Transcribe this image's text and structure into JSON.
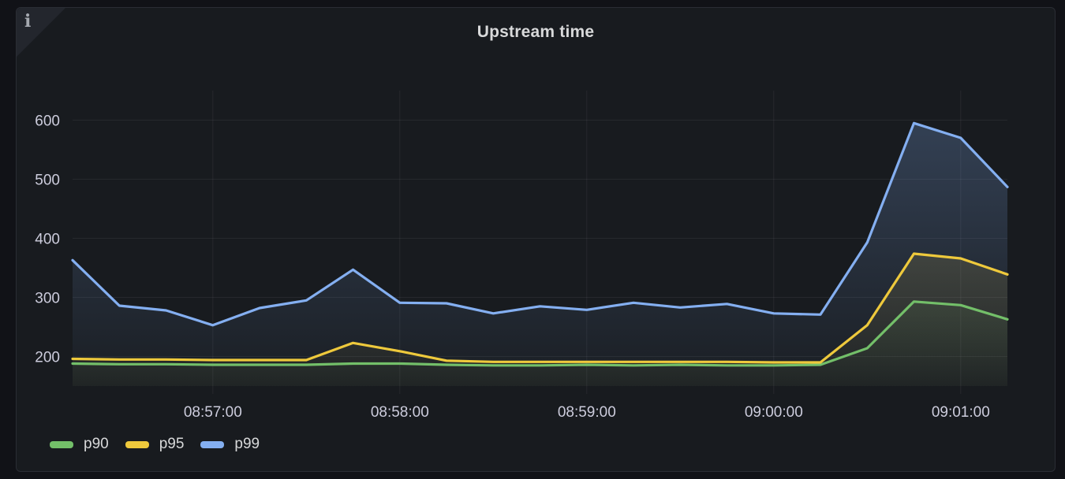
{
  "panel": {
    "title": "Upstream time",
    "info_corner_glyph": "i"
  },
  "colors": {
    "page_bg": "#111217",
    "panel_bg": "#181B1F",
    "panel_border": "#2A2D34",
    "corner_fold": "#23262D",
    "text": "#CCCCDC",
    "title_text": "#D8D9DA",
    "grid": "rgba(204,204,220,0.08)",
    "p90": "#73BF69",
    "p95": "#EEC93C",
    "p99": "#84AFF1"
  },
  "chart_data": {
    "type": "area",
    "title": "Upstream time",
    "x": [
      "08:56:15",
      "08:56:30",
      "08:56:45",
      "08:57:00",
      "08:57:15",
      "08:57:30",
      "08:57:45",
      "08:58:00",
      "08:58:15",
      "08:58:30",
      "08:58:45",
      "08:59:00",
      "08:59:15",
      "08:59:30",
      "08:59:45",
      "09:00:00",
      "09:00:15",
      "09:00:30",
      "09:00:45",
      "09:01:00",
      "09:01:15"
    ],
    "x_tick_labels": [
      "08:57:00",
      "08:58:00",
      "08:59:00",
      "09:00:00",
      "09:01:00"
    ],
    "y_ticks": [
      200,
      300,
      400,
      500,
      600
    ],
    "ylim": [
      150,
      650
    ],
    "grid": true,
    "legend_position": "bottom-left",
    "series": [
      {
        "name": "p90",
        "color": "#73BF69",
        "values": [
          188,
          187,
          187,
          186,
          186,
          186,
          188,
          188,
          186,
          185,
          185,
          186,
          185,
          186,
          185,
          185,
          186,
          214,
          293,
          287,
          263
        ]
      },
      {
        "name": "p95",
        "color": "#EEC93C",
        "values": [
          196,
          195,
          195,
          194,
          194,
          194,
          223,
          209,
          193,
          191,
          191,
          191,
          191,
          191,
          191,
          190,
          190,
          253,
          374,
          366,
          339
        ]
      },
      {
        "name": "p99",
        "color": "#84AFF1",
        "values": [
          363,
          286,
          278,
          253,
          282,
          295,
          347,
          291,
          290,
          273,
          285,
          279,
          291,
          283,
          289,
          273,
          271,
          393,
          595,
          570,
          487
        ]
      }
    ]
  },
  "legend": {
    "items": [
      {
        "label": "p90",
        "color": "#73BF69"
      },
      {
        "label": "p95",
        "color": "#EEC93C"
      },
      {
        "label": "p99",
        "color": "#84AFF1"
      }
    ]
  }
}
